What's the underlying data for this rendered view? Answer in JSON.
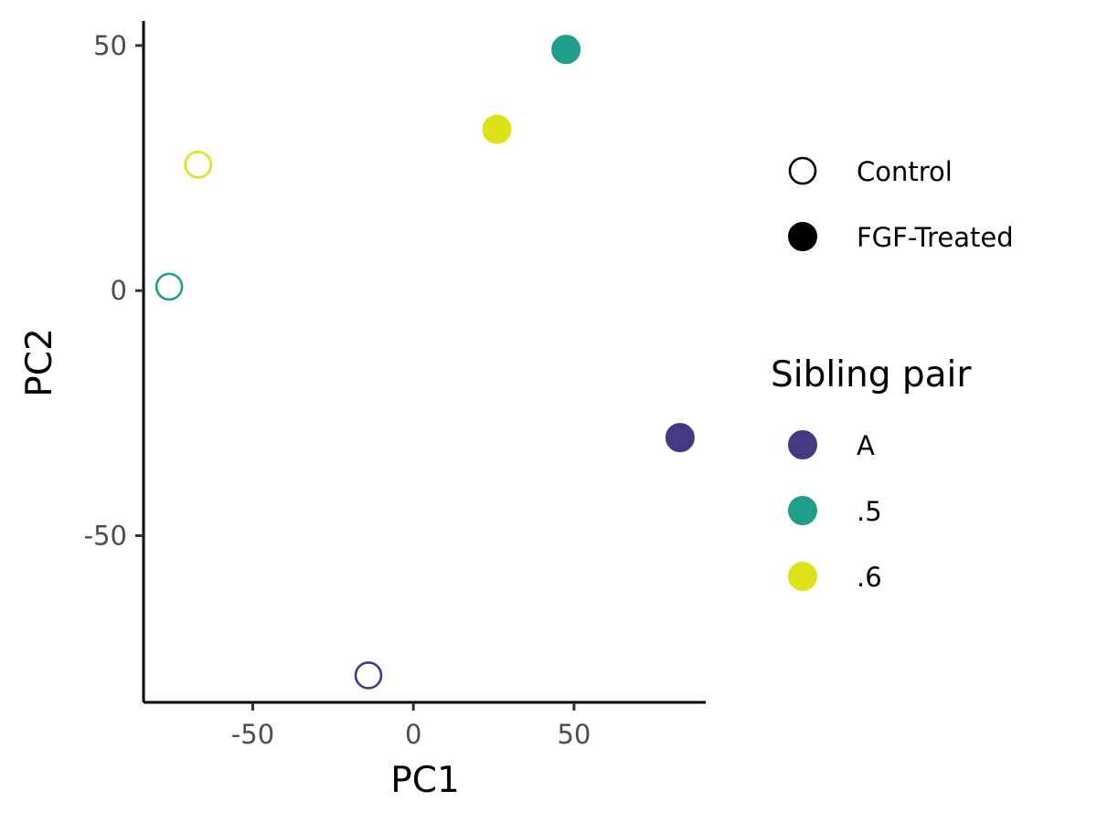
{
  "chart_data": {
    "type": "scatter",
    "xlabel": "PC1",
    "ylabel": "PC2",
    "xlim": [
      -84,
      91
    ],
    "ylim": [
      -84,
      55
    ],
    "x_ticks": [
      -50,
      0,
      50
    ],
    "y_ticks": [
      -50,
      0,
      50
    ],
    "x_tick_labels": [
      "-50",
      "0",
      "50"
    ],
    "y_tick_labels": [
      "-50",
      "0",
      "50"
    ],
    "grid": false,
    "legend_placement": "right",
    "points": [
      {
        "x": -14,
        "y": -78.5,
        "treatment": "Control",
        "pair": "A"
      },
      {
        "x": 83,
        "y": -30,
        "treatment": "FGF-Treated",
        "pair": "A"
      },
      {
        "x": -76,
        "y": 0.8,
        "treatment": "Control",
        "pair": ".5"
      },
      {
        "x": 47.5,
        "y": 49.2,
        "treatment": "FGF-Treated",
        "pair": ".5"
      },
      {
        "x": -67,
        "y": 25.7,
        "treatment": "Control",
        "pair": ".6"
      },
      {
        "x": 26,
        "y": 32.9,
        "treatment": "FGF-Treated",
        "pair": ".6"
      }
    ],
    "shape_legend": {
      "items": [
        {
          "label": "Control",
          "shape": "open-circle"
        },
        {
          "label": "FGF-Treated",
          "shape": "filled-circle"
        }
      ]
    },
    "color_legend": {
      "title": "Sibling pair",
      "items": [
        {
          "label": "A",
          "color": "#443983"
        },
        {
          "label": ".5",
          "color": "#1f9e89"
        },
        {
          "label": ".6",
          "color": "#dde318"
        }
      ]
    }
  }
}
